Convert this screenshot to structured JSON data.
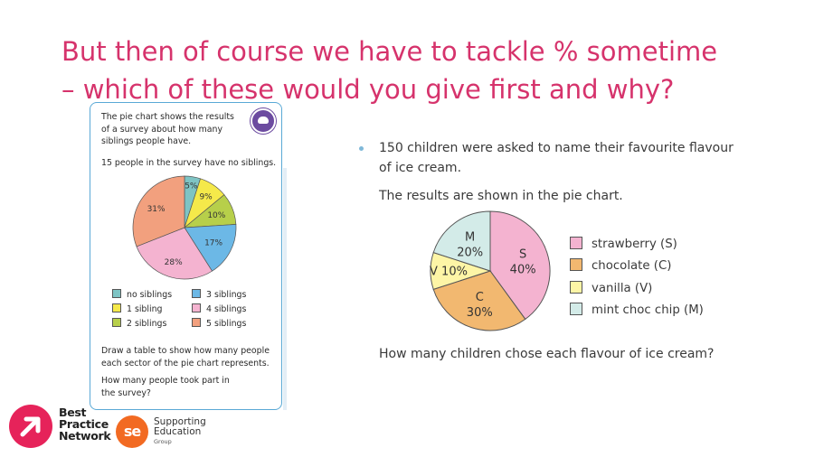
{
  "slide": {
    "title_line1": "But then of course we have to tackle % sometime",
    "title_line2": "– which of these would you give first and why?"
  },
  "left_card": {
    "intro_line1": "The pie chart shows the results",
    "intro_line2": "of a survey about how many",
    "intro_line3": "siblings people have.",
    "given": "15 people in the survey have no siblings.",
    "task_line1": "Draw a table to show how many people",
    "task_line2": "each sector of the pie chart represents.",
    "question_line1": "How many people took part in",
    "question_line2": "the survey?",
    "badge_icon": "cloud-icon"
  },
  "right_panel": {
    "line1": "150 children were asked to name their favourite flavour",
    "line2": "of ice cream.",
    "line3": "The results are shown in the pie chart.",
    "question": "How many children chose each flavour of ice cream?"
  },
  "chart_data": [
    {
      "type": "pie",
      "title": "",
      "legend_placement": "bottom",
      "slices": [
        {
          "label": "no siblings",
          "value": 5,
          "display": "5%",
          "color": "#7ec4c4"
        },
        {
          "label": "1 sibling",
          "value": 9,
          "display": "9%",
          "color": "#f5e94a"
        },
        {
          "label": "2 siblings",
          "value": 10,
          "display": "10%",
          "color": "#b7cf4a"
        },
        {
          "label": "3 siblings",
          "value": 17,
          "display": "17%",
          "color": "#6cb8e6"
        },
        {
          "label": "4 siblings",
          "value": 28,
          "display": "28%",
          "color": "#f4b3d0"
        },
        {
          "label": "5 siblings",
          "value": 31,
          "display": "31%",
          "color": "#f2a07e"
        }
      ]
    },
    {
      "type": "pie",
      "title": "",
      "legend_placement": "right",
      "slices": [
        {
          "label": "strawberry (S)",
          "value": 40,
          "line1": "S",
          "line2": "40%",
          "color": "#f4b3d0"
        },
        {
          "label": "chocolate (C)",
          "value": 30,
          "line1": "C",
          "line2": "30%",
          "color": "#f2b870"
        },
        {
          "label": "vanilla (V)",
          "value": 10,
          "line1": "V 10%",
          "line2": "",
          "color": "#fdf5a6"
        },
        {
          "label": "mint choc chip (M)",
          "value": 20,
          "line1": "M",
          "line2": "20%",
          "color": "#d3ebe8"
        }
      ]
    }
  ],
  "logos": {
    "bpn_line1": "Best",
    "bpn_line2": "Practice",
    "bpn_line3": "Network",
    "se_mark": "se",
    "se_line1": "Supporting",
    "se_line2": "Education",
    "se_line3": "Group"
  }
}
